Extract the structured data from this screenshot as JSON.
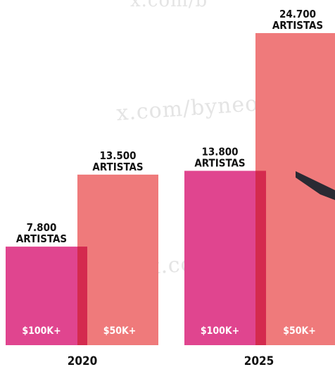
{
  "watermarks": [
    "x.com/b",
    "x.com/byneontelegra",
    "x.com/byneontele"
  ],
  "chart_data": {
    "type": "bar",
    "categories": [
      "2020",
      "2025"
    ],
    "series": [
      {
        "name": "$100K+",
        "values": [
          7800,
          13800
        ],
        "color": "#e0458f",
        "labels": [
          "7.800\nARTISTAS",
          "13.800\nARTISTAS"
        ]
      },
      {
        "name": "$50K+",
        "values": [
          13500,
          24700
        ],
        "color": "#ef7a7b",
        "labels": [
          "13.500\nARTISTAS",
          "24.700\nARTISTAS"
        ]
      }
    ],
    "ylim": [
      0,
      24700
    ],
    "title": "",
    "xlabel": "",
    "ylabel": "",
    "grid": false
  }
}
